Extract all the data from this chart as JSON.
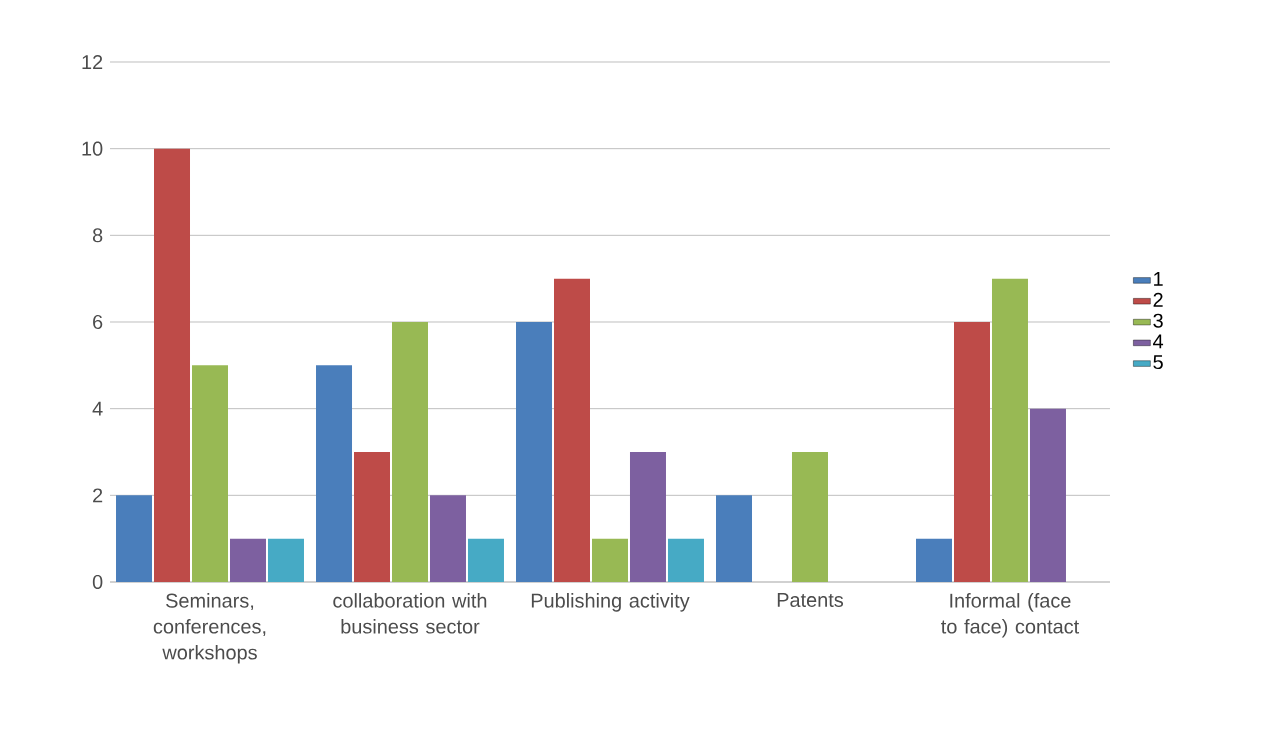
{
  "chart_data": {
    "type": "bar",
    "categories": [
      "Seminars, conferences, workshops",
      "collaboration with business sector",
      "Publishing activity",
      "Patents",
      "Informal (face to face) contact"
    ],
    "series": [
      {
        "name": "1",
        "color": "#4a7ebb",
        "values": [
          2,
          5,
          6,
          2,
          1
        ]
      },
      {
        "name": "2",
        "color": "#be4b48",
        "values": [
          10,
          3,
          7,
          0,
          6
        ]
      },
      {
        "name": "3",
        "color": "#98b954",
        "values": [
          5,
          6,
          1,
          3,
          7
        ]
      },
      {
        "name": "4",
        "color": "#7d60a0",
        "values": [
          1,
          2,
          3,
          0,
          4
        ]
      },
      {
        "name": "5",
        "color": "#46aac5",
        "values": [
          1,
          1,
          1,
          0,
          0
        ]
      }
    ],
    "ylim": [
      0,
      12
    ],
    "yticks": [
      0,
      2,
      4,
      6,
      8,
      10,
      12
    ],
    "grid": "y",
    "legend": "right"
  }
}
